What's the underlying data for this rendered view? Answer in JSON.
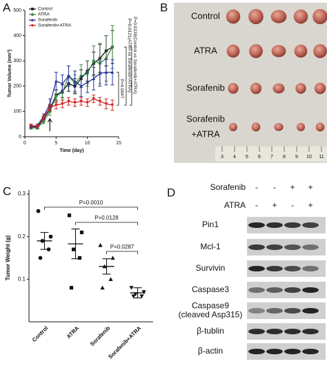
{
  "chart_data": [
    {
      "type": "line",
      "label": "A",
      "xlabel": "Time (day)",
      "ylabel": "Tumor Volume (mm³)",
      "x": [
        1,
        2,
        3,
        4,
        5,
        6,
        7,
        8,
        9,
        10,
        11,
        12,
        13,
        14
      ],
      "xlim": [
        0,
        15
      ],
      "xticks": [
        0,
        5,
        10,
        15
      ],
      "ylim": [
        0,
        500
      ],
      "yticks": [
        0,
        100,
        200,
        300,
        400,
        500
      ],
      "legend": "upper left",
      "series": [
        {
          "name": "Control",
          "color": "#111111",
          "marker": "square",
          "values": [
            40,
            38,
            70,
            110,
            165,
            180,
            210,
            200,
            230,
            260,
            290,
            310,
            340,
            355
          ],
          "errors": [
            5,
            5,
            8,
            12,
            20,
            25,
            30,
            30,
            35,
            40,
            45,
            55,
            60,
            65
          ]
        },
        {
          "name": "ATRA",
          "color": "#3f8a4a",
          "marker": "circle",
          "values": [
            35,
            35,
            60,
            100,
            160,
            175,
            240,
            210,
            240,
            250,
            300,
            290,
            310,
            355
          ],
          "errors": [
            5,
            5,
            8,
            15,
            25,
            30,
            40,
            35,
            45,
            50,
            60,
            80,
            90,
            85
          ]
        },
        {
          "name": "Sorafenib",
          "color": "#26339a",
          "marker": "triangle",
          "values": [
            40,
            45,
            80,
            130,
            220,
            210,
            240,
            220,
            200,
            215,
            230,
            250,
            255,
            255
          ],
          "errors": [
            5,
            6,
            10,
            20,
            35,
            35,
            40,
            40,
            40,
            40,
            45,
            50,
            50,
            50
          ]
        },
        {
          "name": "Sorafenib+ATRA",
          "color": "#d42020",
          "marker": "triangle-down",
          "values": [
            45,
            40,
            75,
            115,
            125,
            130,
            140,
            135,
            140,
            135,
            150,
            140,
            130,
            125
          ],
          "errors": [
            5,
            5,
            8,
            12,
            15,
            15,
            15,
            15,
            15,
            15,
            15,
            15,
            20,
            20
          ]
        }
      ],
      "annotations": [
        "P=0.0130(Control vs Sorafenib+ATRA)",
        "P=0.0121(ATRA vs Sorafenib+ATRA)",
        "P=0.0047"
      ]
    },
    {
      "type": "dot",
      "label": "C",
      "ylabel": "Tumor Weight (g)",
      "categories": [
        "Control",
        "ATRA",
        "Sorafenib",
        "Sorafenib+ATRA"
      ],
      "ylim": [
        0,
        0.3
      ],
      "yticks": [
        0.1,
        0.2,
        0.3
      ],
      "markers": [
        "circle",
        "square",
        "triangle",
        "triangle-down"
      ],
      "color": "#111111",
      "points": [
        [
          0.26,
          0.2,
          0.19,
          0.17,
          0.15
        ],
        [
          0.25,
          0.21,
          0.17,
          0.15,
          0.08
        ],
        [
          0.18,
          0.15,
          0.13,
          0.1,
          0.08
        ],
        [
          0.08,
          0.07,
          0.065,
          0.06,
          0.06
        ]
      ],
      "means": [
        0.19,
        0.183,
        0.13,
        0.068
      ],
      "sems": [
        0.02,
        0.035,
        0.018,
        0.012
      ],
      "annotations": [
        "P=0.0010",
        "P=0.0128",
        "P=0.0287"
      ]
    }
  ],
  "photo": {
    "label": "B",
    "rows": [
      [
        "Control"
      ],
      [
        "ATRA"
      ],
      [
        "Sorafenib"
      ],
      [
        "Sorafenib",
        "+ATRA"
      ]
    ],
    "ruler": [
      "3",
      "4",
      "5",
      "6",
      "7",
      "8",
      "9",
      "10",
      "11"
    ]
  },
  "blot": {
    "label": "D",
    "treatments": [
      {
        "name": "Sorafenib",
        "signs": [
          "-",
          "-",
          "+",
          "+"
        ]
      },
      {
        "name": "ATRA",
        "signs": [
          "-",
          "+",
          "-",
          "+"
        ]
      }
    ],
    "proteins": [
      [
        "Pin1"
      ],
      [
        "Mcl-1"
      ],
      [
        "Survivin"
      ],
      [
        "Caspase3"
      ],
      [
        "Caspase9",
        "(cleaved Asp315)"
      ],
      [
        "β-tublin"
      ],
      [
        "β-actin"
      ]
    ]
  }
}
